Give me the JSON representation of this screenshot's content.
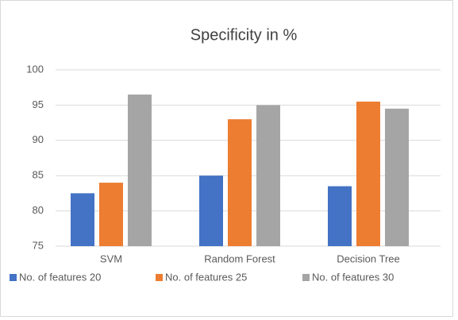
{
  "chart_data": {
    "type": "bar",
    "title": "Specificity in %",
    "categories": [
      "SVM",
      "Random Forest",
      "Decision Tree"
    ],
    "series": [
      {
        "name": "No. of features 20",
        "color": "#4472c4",
        "values": [
          82.5,
          85,
          83.5
        ]
      },
      {
        "name": "No. of features 25",
        "color": "#ed7d31",
        "values": [
          84,
          93,
          95.5
        ]
      },
      {
        "name": "No. of features 30",
        "color": "#a5a5a5",
        "values": [
          96.5,
          95,
          94.5
        ]
      }
    ],
    "ylim": [
      75,
      100
    ],
    "yticks": [
      75,
      80,
      85,
      90,
      95,
      100
    ],
    "grid": true,
    "legend": "bottom"
  }
}
